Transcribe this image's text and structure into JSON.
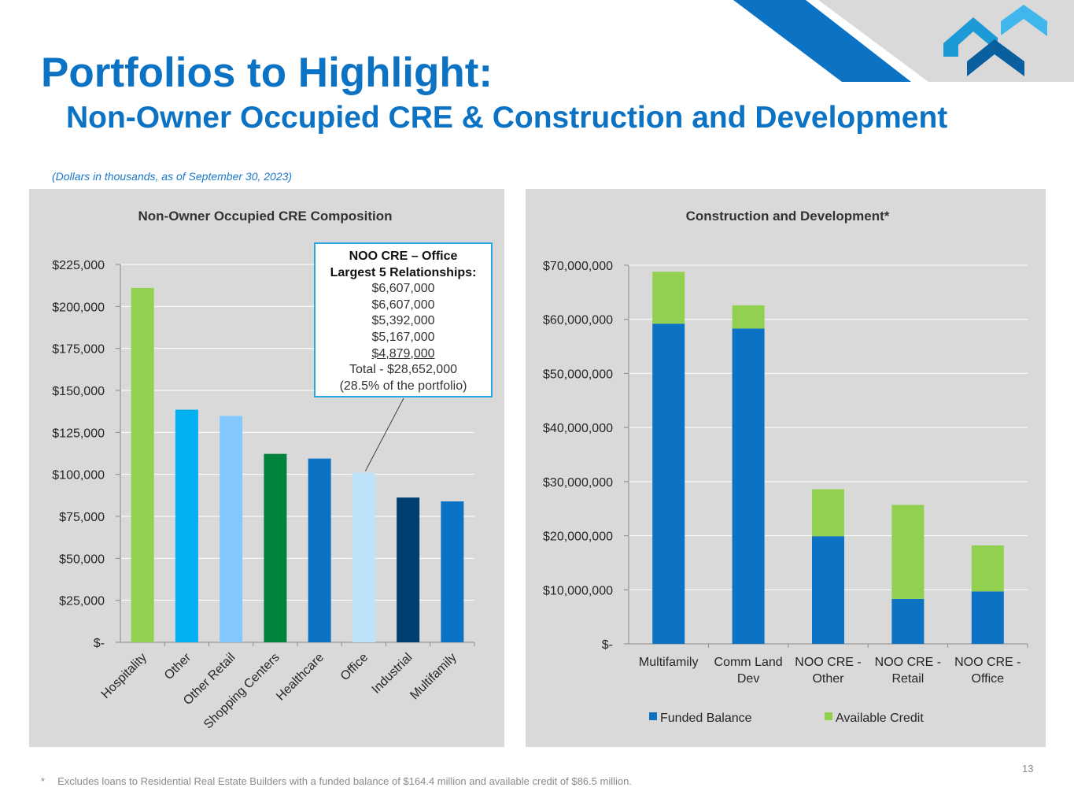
{
  "header": {
    "title": "Portfolios to Highlight:",
    "subtitle": "Non-Owner Occupied CRE & Construction and Development",
    "note": "(Dollars in thousands, as of September 30, 2023)"
  },
  "callout": {
    "title": "NOO CRE – Office",
    "subtitle": "Largest 5 Relationships:",
    "values": [
      "$6,607,000",
      "$6,607,000",
      "$5,392,000",
      "$5,167,000",
      "$4,879,000"
    ],
    "total": "Total - $28,652,000",
    "share": "(28.5% of the portfolio)"
  },
  "footnote": {
    "marker": "*",
    "text": "Excludes loans to Residential Real Estate Builders with a funded balance of $164.4 million and available credit of $86.5 million."
  },
  "page_number": "13",
  "colors": {
    "brand_blue": "#0b72c4",
    "panel_bg": "#d9d9d9",
    "funded": "#0b72c4",
    "available": "#92d050"
  },
  "chart_data": [
    {
      "type": "bar",
      "title": "Non-Owner Occupied CRE Composition",
      "categories": [
        "Hospitality",
        "Other",
        "Other Retail",
        "Shopping Centers",
        "Healthcare",
        "Office",
        "Industrial",
        "Multifamily"
      ],
      "values": [
        211000,
        138500,
        134800,
        112200,
        109400,
        101000,
        86200,
        83900
      ],
      "colors": [
        "#92d050",
        "#00b0f0",
        "#83c9ff",
        "#00843d",
        "#0b72c4",
        "#bde3fb",
        "#003f72",
        "#0b72c4"
      ],
      "yticks": [
        "$-",
        "$25,000",
        "$50,000",
        "$75,000",
        "$100,000",
        "$125,000",
        "$150,000",
        "$175,000",
        "$200,000",
        "$225,000"
      ],
      "ylim": [
        0,
        225000
      ],
      "xlabel": "",
      "ylabel": ""
    },
    {
      "type": "bar",
      "stacked": true,
      "title": "Construction and Development*",
      "categories": [
        "Multifamily",
        "Comm Land Dev",
        "NOO CRE - Other",
        "NOO CRE - Retail",
        "NOO CRE - Office"
      ],
      "category_lines": [
        [
          "Multifamily"
        ],
        [
          "Comm Land",
          "Dev"
        ],
        [
          "NOO CRE -",
          "Other"
        ],
        [
          "NOO CRE -",
          "Retail"
        ],
        [
          "NOO CRE -",
          "Office"
        ]
      ],
      "series": [
        {
          "name": "Funded Balance",
          "color": "#0b72c4",
          "values": [
            59200000,
            58300000,
            19900000,
            8300000,
            9700000
          ]
        },
        {
          "name": "Available Credit",
          "color": "#92d050",
          "values": [
            9600000,
            4300000,
            8700000,
            17400000,
            8500000
          ]
        }
      ],
      "yticks": [
        "$-",
        "$10,000,000",
        "$20,000,000",
        "$30,000,000",
        "$40,000,000",
        "$50,000,000",
        "$60,000,000",
        "$70,000,000"
      ],
      "ylim": [
        0,
        70000000
      ],
      "legend": "bottom",
      "xlabel": "",
      "ylabel": ""
    }
  ]
}
